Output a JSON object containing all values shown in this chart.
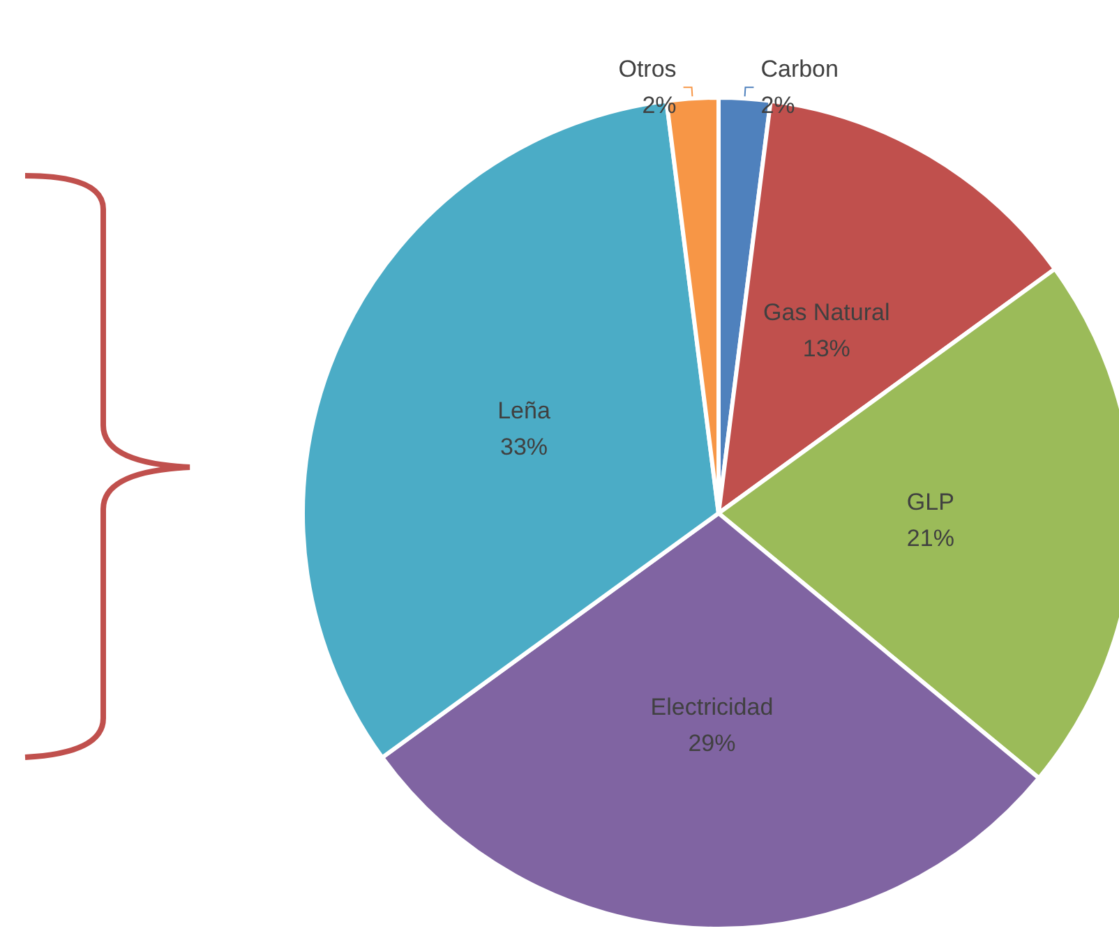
{
  "chart_data": {
    "type": "pie",
    "categories": [
      "Carbon",
      "Gas Natural",
      "GLP",
      "Electricidad",
      "Leña",
      "Otros"
    ],
    "values": [
      2,
      13,
      21,
      29,
      33,
      2
    ],
    "value_labels": [
      "2%",
      "13%",
      "21%",
      "29%",
      "33%",
      "2%"
    ],
    "colors": [
      "#4f81bd",
      "#c0504d",
      "#9bbb59",
      "#8064a2",
      "#4bacc6",
      "#f79646"
    ],
    "legend": false
  }
}
